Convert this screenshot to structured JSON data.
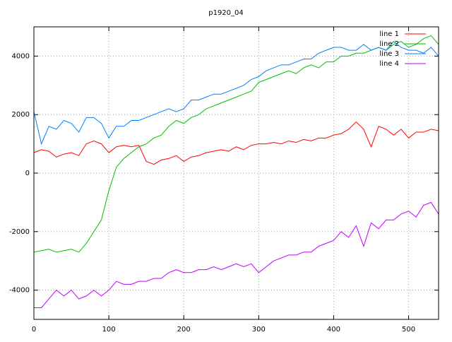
{
  "chart_data": {
    "type": "line",
    "title": "p1920_04",
    "x": [
      0,
      10,
      20,
      30,
      40,
      50,
      60,
      70,
      80,
      90,
      100,
      110,
      120,
      130,
      140,
      150,
      160,
      170,
      180,
      190,
      200,
      210,
      220,
      230,
      240,
      250,
      260,
      270,
      280,
      290,
      300,
      310,
      320,
      330,
      340,
      350,
      360,
      370,
      380,
      390,
      400,
      410,
      420,
      430,
      440,
      450,
      460,
      470,
      480,
      490,
      500,
      510,
      520,
      530,
      540
    ],
    "series": [
      {
        "name": "line 1",
        "color": "#ff0000",
        "values": [
          700,
          800,
          750,
          550,
          650,
          700,
          600,
          1000,
          1100,
          1000,
          700,
          900,
          950,
          900,
          950,
          400,
          300,
          450,
          500,
          600,
          400,
          550,
          600,
          700,
          750,
          800,
          750,
          900,
          800,
          950,
          1000,
          1000,
          1050,
          1000,
          1100,
          1050,
          1150,
          1100,
          1200,
          1200,
          1300,
          1350,
          1500,
          1750,
          1500,
          900,
          1600,
          1500,
          1300,
          1500,
          1200,
          1400,
          1400,
          1500,
          1450
        ]
      },
      {
        "name": "line 2",
        "color": "#00c000",
        "values": [
          -2700,
          -2650,
          -2600,
          -2700,
          -2650,
          -2600,
          -2700,
          -2400,
          -2000,
          -1600,
          -600,
          200,
          500,
          700,
          900,
          1000,
          1200,
          1300,
          1600,
          1800,
          1700,
          1900,
          2000,
          2200,
          2300,
          2400,
          2500,
          2600,
          2700,
          2800,
          3100,
          3200,
          3300,
          3400,
          3500,
          3400,
          3600,
          3700,
          3600,
          3800,
          3800,
          4000,
          4000,
          4100,
          4100,
          4200,
          4300,
          4200,
          4400,
          4500,
          4300,
          4400,
          4600,
          4700,
          4400
        ]
      },
      {
        "name": "line 3",
        "color": "#0080ff",
        "values": [
          2100,
          1000,
          1600,
          1500,
          1800,
          1700,
          1400,
          1900,
          1900,
          1700,
          1200,
          1600,
          1600,
          1800,
          1800,
          1900,
          2000,
          2100,
          2200,
          2100,
          2200,
          2500,
          2500,
          2600,
          2700,
          2700,
          2800,
          2900,
          3000,
          3200,
          3300,
          3500,
          3600,
          3700,
          3700,
          3800,
          3900,
          3900,
          4100,
          4200,
          4300,
          4300,
          4200,
          4200,
          4400,
          4200,
          4300,
          4200,
          4500,
          4300,
          4200,
          4200,
          4100,
          4300,
          4000
        ]
      },
      {
        "name": "line 4",
        "color": "#c000ff",
        "values": [
          -4600,
          -4600,
          -4300,
          -4000,
          -4200,
          -4000,
          -4300,
          -4200,
          -4000,
          -4200,
          -4000,
          -3700,
          -3800,
          -3800,
          -3700,
          -3700,
          -3600,
          -3600,
          -3400,
          -3300,
          -3400,
          -3400,
          -3300,
          -3300,
          -3200,
          -3300,
          -3200,
          -3100,
          -3200,
          -3100,
          -3400,
          -3200,
          -3000,
          -2900,
          -2800,
          -2800,
          -2700,
          -2700,
          -2500,
          -2400,
          -2300,
          -2000,
          -2200,
          -1800,
          -2500,
          -1700,
          -1900,
          -1600,
          -1600,
          -1400,
          -1300,
          -1500,
          -1100,
          -1000,
          -1400
        ]
      }
    ],
    "xlim": [
      0,
      540
    ],
    "xticks": [
      0,
      100,
      200,
      300,
      400,
      500
    ],
    "ylim": [
      -5000,
      5000
    ],
    "yticks": [
      -4000,
      -2000,
      0,
      2000,
      4000
    ],
    "grid": true,
    "legend": "top-right"
  }
}
